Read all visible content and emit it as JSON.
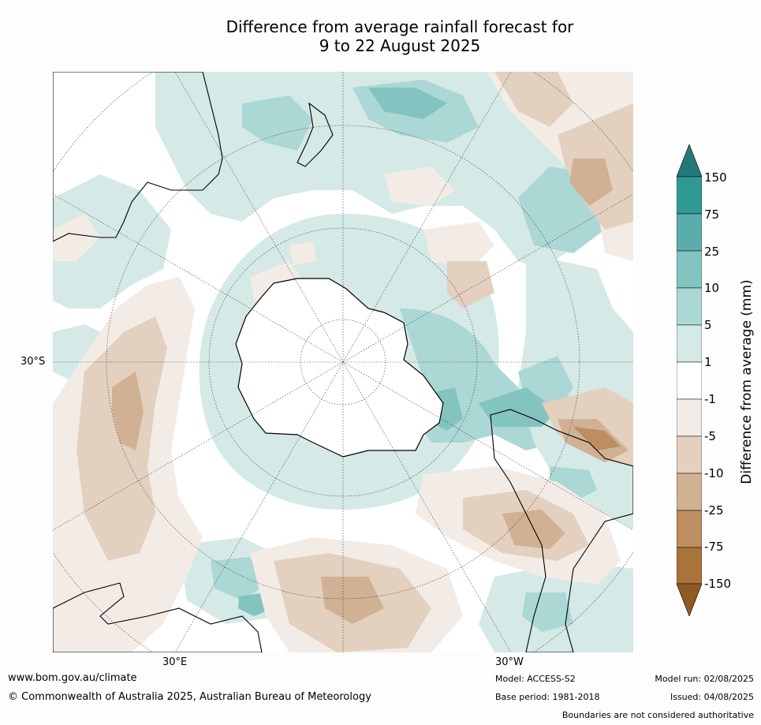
{
  "title_line1": "Difference from average rainfall forecast for",
  "title_line2": "9 to 22 August 2025",
  "map": {
    "projection": "south-polar-stereographic",
    "lat_label": "30°S",
    "lon_labels": [
      "30°E",
      "30°W"
    ],
    "regions": [
      "Antarctica",
      "Australia",
      "New Zealand",
      "South America",
      "Africa"
    ],
    "colors": {
      "ocean_zero": "#ffffff",
      "antarctica": "#ffffff",
      "coast": "#000000"
    }
  },
  "colorbar": {
    "title": "Difference from average (mm)",
    "ticks": [
      "150",
      "75",
      "25",
      "10",
      "5",
      "1",
      "-1",
      "-5",
      "-10",
      "-25",
      "-75",
      "-150"
    ],
    "colors": [
      "#227a78",
      "#2f9995",
      "#5aadaa",
      "#83c3c0",
      "#abd7d4",
      "#d5e9e7",
      "#ffffff",
      "#f3ece6",
      "#e3d0bf",
      "#d0b193",
      "#bc8e60",
      "#a9733c",
      "#8f5a23"
    ]
  },
  "footer": {
    "url": "www.bom.gov.au/climate",
    "copyright": "© Commonwealth of Australia 2025, Australian Bureau of Meteorology",
    "model": "Model: ACCESS-S2",
    "base_period": "Base period: 1981-2018",
    "model_run": "Model run: 02/08/2025",
    "issued": "Issued: 04/08/2025",
    "disclaimer": "Boundaries are not considered authoritative"
  }
}
